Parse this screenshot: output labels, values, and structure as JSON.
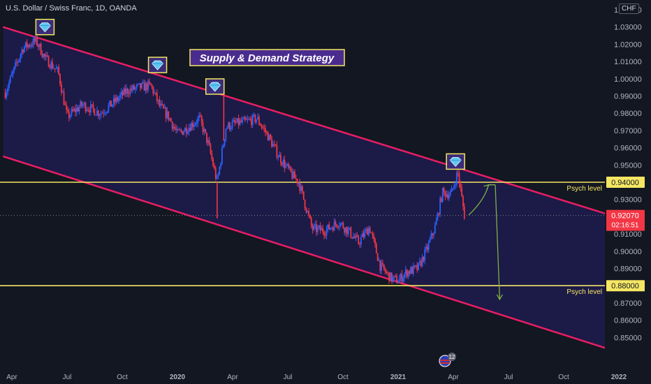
{
  "header": {
    "symbol_title": "U.S. Dollar / Swiss Franc, 1D, OANDA",
    "currency_badge": "CHF"
  },
  "colors": {
    "background": "#131722",
    "channel_fill": "#1e1b4b",
    "channel_line": "#e91e63",
    "bull_candle": "#2962ff",
    "bear_candle": "#f23645",
    "psych_line": "#f5e663",
    "projection": "#7cb342",
    "title_bg": "#4a2c8f",
    "title_border": "#f5e663"
  },
  "chart_data": {
    "type": "candlestick",
    "title": "Supply & Demand Strategy",
    "x_axis": {
      "tick_labels": [
        "Apr",
        "Jul",
        "Oct",
        "2020",
        "Apr",
        "Jul",
        "Oct",
        "2021",
        "Apr",
        "Jul",
        "Oct",
        "2022"
      ]
    },
    "y_axis": {
      "range": [
        0.843,
        1.048
      ],
      "tick_labels": [
        "1.04000",
        "1.03000",
        "1.02000",
        "1.01000",
        "1.00000",
        "0.99000",
        "0.98000",
        "0.97000",
        "0.96000",
        "0.95000",
        "0.93000",
        "0.91000",
        "0.90000",
        "0.89000",
        "0.87000",
        "0.86000",
        "0.85000"
      ]
    },
    "price_path": [
      [
        2019.22,
        0.992
      ],
      [
        2019.3,
        1.018
      ],
      [
        2019.36,
        1.022
      ],
      [
        2019.4,
        1.012
      ],
      [
        2019.46,
        1.004
      ],
      [
        2019.5,
        0.978
      ],
      [
        2019.57,
        0.985
      ],
      [
        2019.65,
        0.98
      ],
      [
        2019.71,
        0.986
      ],
      [
        2019.77,
        0.993
      ],
      [
        2019.83,
        0.995
      ],
      [
        2019.88,
        0.996
      ],
      [
        2019.92,
        0.984
      ],
      [
        2019.96,
        0.978
      ],
      [
        2020.0,
        0.968
      ],
      [
        2020.05,
        0.972
      ],
      [
        2020.1,
        0.977
      ],
      [
        2020.14,
        0.962
      ],
      [
        2020.18,
        0.94
      ],
      [
        2020.22,
        0.972
      ],
      [
        2020.26,
        0.974
      ],
      [
        2020.31,
        0.975
      ],
      [
        2020.36,
        0.977
      ],
      [
        2020.41,
        0.967
      ],
      [
        2020.46,
        0.955
      ],
      [
        2020.52,
        0.944
      ],
      [
        2020.55,
        0.94
      ],
      [
        2020.61,
        0.913
      ],
      [
        2020.67,
        0.912
      ],
      [
        2020.73,
        0.917
      ],
      [
        2020.78,
        0.911
      ],
      [
        2020.82,
        0.905
      ],
      [
        2020.87,
        0.914
      ],
      [
        2020.92,
        0.891
      ],
      [
        2020.97,
        0.884
      ],
      [
        2021.0,
        0.883
      ],
      [
        2021.04,
        0.888
      ],
      [
        2021.09,
        0.89
      ],
      [
        2021.13,
        0.901
      ],
      [
        2021.17,
        0.915
      ],
      [
        2021.2,
        0.934
      ],
      [
        2021.24,
        0.933
      ],
      [
        2021.27,
        0.946
      ],
      [
        2021.3,
        0.921
      ]
    ],
    "price_spikes": [
      {
        "x": 2020.18,
        "low": 0.919
      },
      {
        "x": 2020.21,
        "high": 0.991
      }
    ],
    "channel": {
      "upper": [
        [
          2019.21,
          1.03
        ],
        [
          2021.96,
          0.921
        ]
      ],
      "lower": [
        [
          2019.21,
          0.955
        ],
        [
          2021.96,
          0.843
        ]
      ]
    },
    "supply_markers": [
      {
        "x": 2019.4,
        "y": 1.03
      },
      {
        "x": 2019.91,
        "y": 1.008
      },
      {
        "x": 2020.17,
        "y": 0.9955
      },
      {
        "x": 2021.26,
        "y": 0.952
      }
    ],
    "psych_levels": [
      {
        "value": "0.94000",
        "level": 0.94,
        "label": "Psych level"
      },
      {
        "value": "0.88000",
        "level": 0.88,
        "label": "Psych level"
      }
    ],
    "current_price": {
      "value": "0.92070",
      "level": 0.9207,
      "countdown": "02:16:51"
    },
    "projection_path": [
      [
        2021.32,
        0.921
      ],
      [
        2021.41,
        0.9385
      ],
      [
        2021.44,
        0.9385
      ],
      [
        2021.46,
        0.872
      ]
    ],
    "events_badge": "12"
  }
}
